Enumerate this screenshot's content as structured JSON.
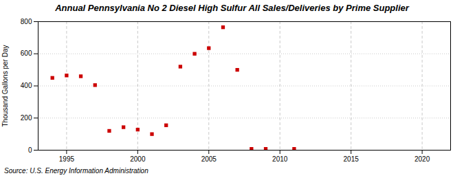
{
  "chart_data": {
    "type": "scatter",
    "title": "Annual Pennsylvania No 2 Diesel High Sulfur All Sales/Deliveries by Prime Supplier",
    "ylabel": "Thousand Gallons per Day",
    "caption": "Source: U.S. Energy Information Administration",
    "x": [
      1994,
      1995,
      1996,
      1997,
      1998,
      1999,
      2000,
      2001,
      2002,
      2003,
      2004,
      2005,
      2006,
      2007,
      2008,
      2009,
      2011
    ],
    "values": [
      450,
      465,
      460,
      405,
      120,
      143,
      128,
      100,
      155,
      520,
      600,
      635,
      765,
      500,
      8,
      8,
      8
    ],
    "color": "#cc0000",
    "marker": "square",
    "xlim": [
      1993,
      2022
    ],
    "xticks": [
      1995,
      2000,
      2005,
      2010,
      2015,
      2020
    ],
    "ylim": [
      0,
      800
    ],
    "yticks": [
      0,
      200,
      400,
      600,
      800
    ],
    "grid": true
  }
}
